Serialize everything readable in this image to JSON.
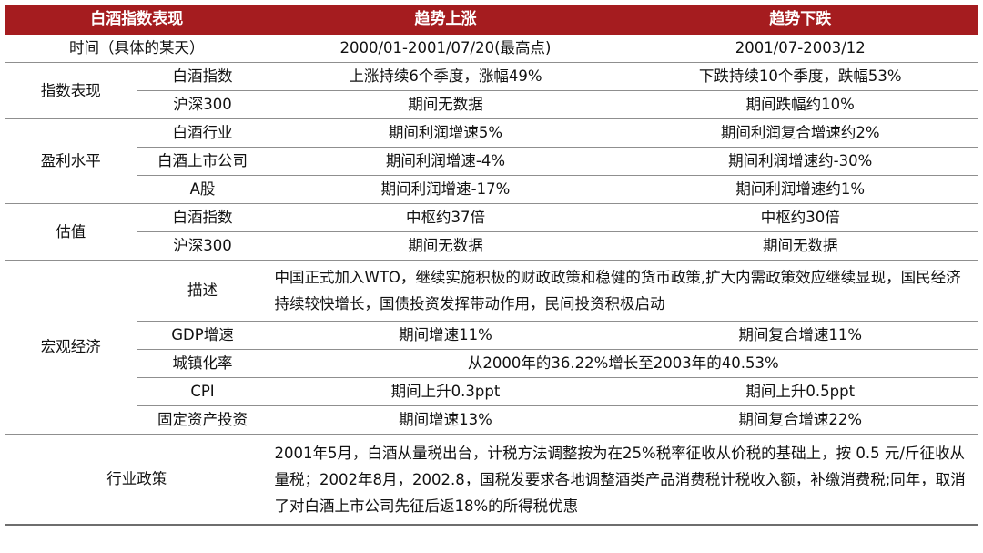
{
  "header": {
    "col1": "白酒指数表现",
    "col2": "趋势上涨",
    "col3": "趋势下跌"
  },
  "time_row": {
    "label": "时间（具体的某天）",
    "up": "2000/01-2001/07/20(最高点)",
    "down": "2001/07-2003/12"
  },
  "index_perf": {
    "group": "指数表现",
    "rows": [
      {
        "item": "白酒指数",
        "up": "上涨持续6个季度，涨幅49%",
        "down": "下跌持续10个季度，跌幅53%"
      },
      {
        "item": "沪深300",
        "up": "期间无数据",
        "down": "期间跌幅约10%"
      }
    ]
  },
  "profit": {
    "group": "盈利水平",
    "rows": [
      {
        "item": "白酒行业",
        "up": "期间利润增速5%",
        "down": "期间利润复合增速约2%"
      },
      {
        "item": "白酒上市公司",
        "up": "期间利润增速-4%",
        "down": "期间利润增速约-30%"
      },
      {
        "item": "A股",
        "up": "期间利润增速-17%",
        "down": "期间利润增速约1%"
      }
    ]
  },
  "valuation": {
    "group": "估值",
    "rows": [
      {
        "item": "白酒指数",
        "up": "中枢约37倍",
        "down": "中枢约30倍"
      },
      {
        "item": "沪深300",
        "up": "期间无数据",
        "down": "期间无数据"
      }
    ]
  },
  "macro": {
    "group": "宏观经济",
    "desc_item": "描述",
    "desc_text": "中国正式加入WTO，继续实施积极的财政政策和稳健的货币政策,扩大内需政策效应继续显现，国民经济持续较快增长，国债投资发挥带动作用，民间投资积极启动",
    "gdp": {
      "item": "GDP增速",
      "up": "期间增速11%",
      "down": "期间复合增速11%"
    },
    "urban": {
      "item": "城镇化率",
      "text": "从2000年的36.22%增长至2003年的40.53%"
    },
    "cpi": {
      "item": "CPI",
      "up": "期间上升0.3ppt",
      "down": "期间上升0.5ppt"
    },
    "fai": {
      "item": "固定资产投资",
      "up": "期间增速13%",
      "down": "期间复合增速22%"
    }
  },
  "policy": {
    "label": "行业政策",
    "text": "2001年5月，白酒从量税出台，计税方法调整按为在25%税率征收从价税的基础上，按 0.5 元/斤征收从量税；2002年8月，2002.8，国税发要求各地调整酒类产品消费税计税收入额，补缴消费税;同年，取消了对白酒上市公司先征后返18%的所得税优惠"
  }
}
